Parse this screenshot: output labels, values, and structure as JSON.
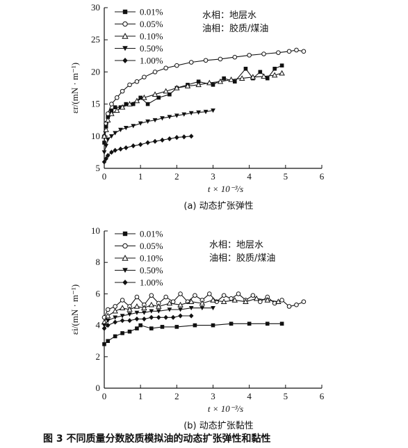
{
  "figure_caption": "图 3   不同质量分数胶质模拟油的动态扩张弹性和黏性",
  "legend_icons": {
    "0.01%": "filled-square",
    "0.05%": "open-circle",
    "0.10%": "open-triangle-up",
    "0.50%": "filled-triangle-down",
    "1.00%": "filled-diamond"
  },
  "chart_data": [
    {
      "type": "line",
      "panel": "a",
      "subcaption": "(a) 动态扩张弹性",
      "ylabel": "εr/(mN · m⁻¹)",
      "xlabel": "t × 10⁻³/s",
      "xlim": [
        0,
        6
      ],
      "ylim": [
        5,
        30
      ],
      "xticks": [
        "0",
        "1",
        "2",
        "3",
        "4",
        "5",
        "6"
      ],
      "yticks": [
        "5",
        "10",
        "15",
        "20",
        "25",
        "30"
      ],
      "annotations": [
        "水相：地层水",
        "油相：胶质/煤油"
      ],
      "legend_position": "top-left",
      "series": [
        {
          "name": "0.01%",
          "marker": "filled-square",
          "x": [
            0.0,
            0.05,
            0.1,
            0.2,
            0.3,
            0.45,
            0.6,
            0.8,
            1.0,
            1.2,
            1.5,
            1.8,
            2.0,
            2.3,
            2.6,
            3.0,
            3.3,
            3.6,
            3.9,
            4.1,
            4.3,
            4.5,
            4.7,
            4.9
          ],
          "y": [
            9.0,
            11.5,
            13.0,
            14.0,
            14.5,
            14.5,
            15.0,
            15.0,
            16.0,
            15.0,
            16.0,
            16.5,
            17.5,
            18.0,
            18.5,
            18.0,
            19.0,
            18.5,
            20.5,
            19.0,
            20.0,
            19.0,
            20.5,
            21.0
          ]
        },
        {
          "name": "0.05%",
          "marker": "open-circle",
          "x": [
            0.0,
            0.05,
            0.1,
            0.2,
            0.35,
            0.5,
            0.7,
            0.9,
            1.1,
            1.4,
            1.7,
            2.0,
            2.4,
            2.8,
            3.2,
            3.6,
            4.0,
            4.4,
            4.8,
            5.1,
            5.3,
            5.5
          ],
          "y": [
            10.0,
            12.0,
            13.5,
            15.0,
            16.0,
            17.0,
            18.0,
            18.5,
            19.2,
            20.0,
            20.6,
            21.0,
            21.5,
            21.8,
            22.0,
            22.3,
            22.6,
            22.8,
            23.0,
            23.2,
            23.4,
            23.2
          ]
        },
        {
          "name": "0.10%",
          "marker": "open-triangle-up",
          "x": [
            0.0,
            0.05,
            0.1,
            0.2,
            0.35,
            0.5,
            0.7,
            0.9,
            1.1,
            1.4,
            1.7,
            2.0,
            2.3,
            2.6,
            2.9,
            3.2,
            3.5,
            3.8,
            4.1,
            4.4,
            4.7,
            4.9
          ],
          "y": [
            10.0,
            11.0,
            12.5,
            13.5,
            14.0,
            14.5,
            15.0,
            15.5,
            16.0,
            16.5,
            17.0,
            17.5,
            17.8,
            18.0,
            18.3,
            18.5,
            18.8,
            19.0,
            19.2,
            19.3,
            19.5,
            19.8
          ]
        },
        {
          "name": "0.50%",
          "marker": "filled-triangle-down",
          "x": [
            0.0,
            0.05,
            0.1,
            0.2,
            0.3,
            0.45,
            0.6,
            0.8,
            1.0,
            1.2,
            1.4,
            1.6,
            1.8,
            2.0,
            2.2,
            2.4,
            2.6,
            2.8,
            3.0
          ],
          "y": [
            7.5,
            8.5,
            9.5,
            10.0,
            10.5,
            11.0,
            11.3,
            11.6,
            12.0,
            12.3,
            12.5,
            12.8,
            13.0,
            13.2,
            13.4,
            13.6,
            13.7,
            13.8,
            14.0
          ]
        },
        {
          "name": "1.00%",
          "marker": "filled-diamond",
          "x": [
            0.0,
            0.05,
            0.1,
            0.2,
            0.3,
            0.45,
            0.6,
            0.8,
            1.0,
            1.2,
            1.4,
            1.6,
            1.8,
            2.0,
            2.2,
            2.4
          ],
          "y": [
            6.0,
            6.5,
            7.0,
            7.5,
            7.8,
            8.0,
            8.2,
            8.5,
            8.7,
            9.0,
            9.2,
            9.4,
            9.6,
            9.8,
            9.9,
            10.0
          ]
        }
      ]
    },
    {
      "type": "line",
      "panel": "b",
      "subcaption": "(b) 动态扩张黏性",
      "ylabel": "εi/(mN · m⁻¹)",
      "xlabel": "t × 10⁻³/s",
      "xlim": [
        0,
        6
      ],
      "ylim": [
        0,
        10
      ],
      "xticks": [
        "0",
        "1",
        "2",
        "3",
        "4",
        "5",
        "6"
      ],
      "yticks": [
        "0",
        "2",
        "4",
        "6",
        "8",
        "10"
      ],
      "annotations": [
        "水相：地层水",
        "油相：胶质/煤油"
      ],
      "legend_position": "top-left",
      "series": [
        {
          "name": "0.01%",
          "marker": "filled-square",
          "x": [
            0.0,
            0.1,
            0.3,
            0.5,
            0.7,
            0.9,
            1.0,
            1.3,
            1.6,
            2.0,
            2.5,
            3.0,
            3.5,
            4.0,
            4.5,
            4.9
          ],
          "y": [
            2.8,
            3.0,
            3.3,
            3.5,
            3.6,
            3.8,
            4.0,
            3.8,
            3.9,
            3.9,
            4.0,
            4.0,
            4.1,
            4.1,
            4.1,
            4.1
          ]
        },
        {
          "name": "0.05%",
          "marker": "open-circle",
          "x": [
            0.0,
            0.1,
            0.3,
            0.5,
            0.7,
            0.9,
            1.1,
            1.3,
            1.5,
            1.7,
            1.9,
            2.1,
            2.3,
            2.5,
            2.7,
            2.9,
            3.1,
            3.3,
            3.5,
            3.7,
            3.9,
            4.1,
            4.3,
            4.5,
            4.7,
            4.9,
            5.1,
            5.3,
            5.5
          ],
          "y": [
            4.5,
            5.0,
            5.2,
            5.6,
            5.2,
            5.8,
            5.3,
            5.9,
            5.4,
            5.8,
            5.5,
            6.0,
            5.5,
            5.9,
            5.6,
            6.0,
            5.5,
            5.9,
            5.7,
            6.0,
            5.6,
            5.9,
            5.5,
            5.8,
            5.4,
            5.6,
            5.2,
            5.3,
            5.5
          ]
        },
        {
          "name": "0.10%",
          "marker": "open-triangle-up",
          "x": [
            0.0,
            0.1,
            0.3,
            0.5,
            0.7,
            0.9,
            1.1,
            1.3,
            1.5,
            1.8,
            2.1,
            2.4,
            2.7,
            3.0,
            3.3,
            3.6,
            3.9,
            4.2,
            4.5,
            4.8
          ],
          "y": [
            4.2,
            4.6,
            4.9,
            5.1,
            5.0,
            5.2,
            5.1,
            5.3,
            5.2,
            5.4,
            5.3,
            5.5,
            5.4,
            5.6,
            5.5,
            5.6,
            5.5,
            5.7,
            5.6,
            5.5
          ]
        },
        {
          "name": "0.50%",
          "marker": "filled-triangle-down",
          "x": [
            0.0,
            0.1,
            0.3,
            0.5,
            0.7,
            0.9,
            1.1,
            1.3,
            1.5,
            1.8,
            2.1,
            2.4,
            2.7,
            3.0
          ],
          "y": [
            4.0,
            4.3,
            4.5,
            4.6,
            4.7,
            4.8,
            4.8,
            4.9,
            4.9,
            5.0,
            5.0,
            5.1,
            5.1,
            5.1
          ]
        },
        {
          "name": "1.00%",
          "marker": "filled-diamond",
          "x": [
            0.0,
            0.1,
            0.3,
            0.5,
            0.7,
            0.9,
            1.1,
            1.3,
            1.5,
            1.7,
            1.9,
            2.1,
            2.4
          ],
          "y": [
            3.8,
            4.0,
            4.2,
            4.3,
            4.3,
            4.4,
            4.4,
            4.5,
            4.5,
            4.5,
            4.5,
            4.6,
            4.6
          ]
        }
      ]
    }
  ]
}
